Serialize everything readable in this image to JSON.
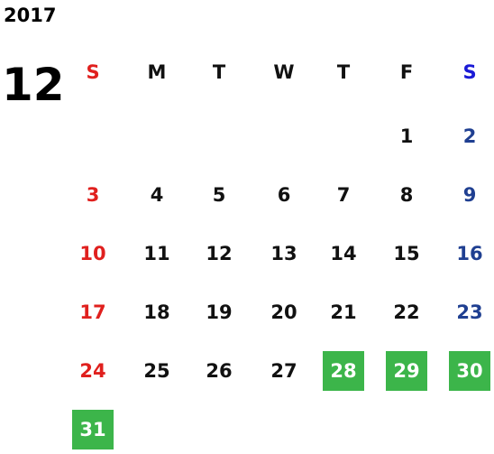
{
  "calendar": {
    "year": "2017",
    "month": "12",
    "weekdays": [
      "S",
      "M",
      "T",
      "W",
      "T",
      "F",
      "S"
    ],
    "weeks": [
      [
        null,
        null,
        null,
        null,
        null,
        1,
        2
      ],
      [
        3,
        4,
        5,
        6,
        7,
        8,
        9
      ],
      [
        10,
        11,
        12,
        13,
        14,
        15,
        16
      ],
      [
        17,
        18,
        19,
        20,
        21,
        22,
        23
      ],
      [
        24,
        25,
        26,
        27,
        28,
        29,
        30
      ],
      [
        31,
        null,
        null,
        null,
        null,
        null,
        null
      ]
    ],
    "highlighted": [
      28,
      29,
      30,
      31
    ],
    "highlight_color": "#3cb54a",
    "sunday_color": "#e0201e",
    "saturday_header_color": "#1a1ad6",
    "saturday_color": "#1f3f91",
    "text_color": "#111111"
  }
}
